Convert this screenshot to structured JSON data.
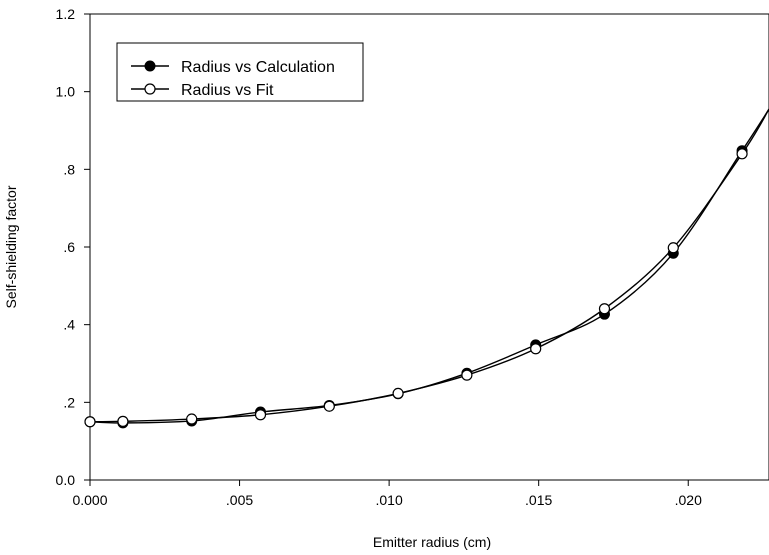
{
  "chart_data": {
    "type": "line",
    "title": "",
    "xlabel": "Emitter radius  (cm)",
    "ylabel": "Self-shielding factor",
    "xlim": [
      0,
      0.0227
    ],
    "ylim": [
      0,
      1.2
    ],
    "grid": false,
    "legend_position": "top-left",
    "x_ticks": [
      {
        "value": 0.0,
        "label": "0.000"
      },
      {
        "value": 0.005,
        "label": ".005"
      },
      {
        "value": 0.01,
        "label": ".010"
      },
      {
        "value": 0.015,
        "label": ".015"
      },
      {
        "value": 0.02,
        "label": ".020"
      }
    ],
    "y_ticks": [
      {
        "value": 0.0,
        "label": "0.0"
      },
      {
        "value": 0.2,
        "label": ".2"
      },
      {
        "value": 0.4,
        "label": ".4"
      },
      {
        "value": 0.6,
        "label": ".6"
      },
      {
        "value": 0.8,
        "label": ".8"
      },
      {
        "value": 1.0,
        "label": "1.0"
      },
      {
        "value": 1.2,
        "label": "1.2"
      }
    ],
    "series": [
      {
        "name": "Radius vs Calculation",
        "marker": "filled-circle",
        "color": "#000000",
        "x": [
          0.0,
          0.0011,
          0.0034,
          0.0057,
          0.008,
          0.0103,
          0.0126,
          0.0149,
          0.0172,
          0.0195,
          0.0218
        ],
        "y": [
          0.15,
          0.147,
          0.152,
          0.175,
          0.192,
          0.222,
          0.275,
          0.348,
          0.427,
          0.584,
          0.848
        ]
      },
      {
        "name": "Radius vs Fit",
        "marker": "open-circle",
        "color": "#000000",
        "x": [
          0.0,
          0.0011,
          0.0034,
          0.0057,
          0.008,
          0.0103,
          0.0126,
          0.0149,
          0.0172,
          0.0195,
          0.0218
        ],
        "y": [
          0.15,
          0.151,
          0.157,
          0.168,
          0.19,
          0.223,
          0.27,
          0.338,
          0.441,
          0.598,
          0.84
        ]
      }
    ],
    "curve_end": {
      "x": 0.0227,
      "y": 0.955
    }
  }
}
